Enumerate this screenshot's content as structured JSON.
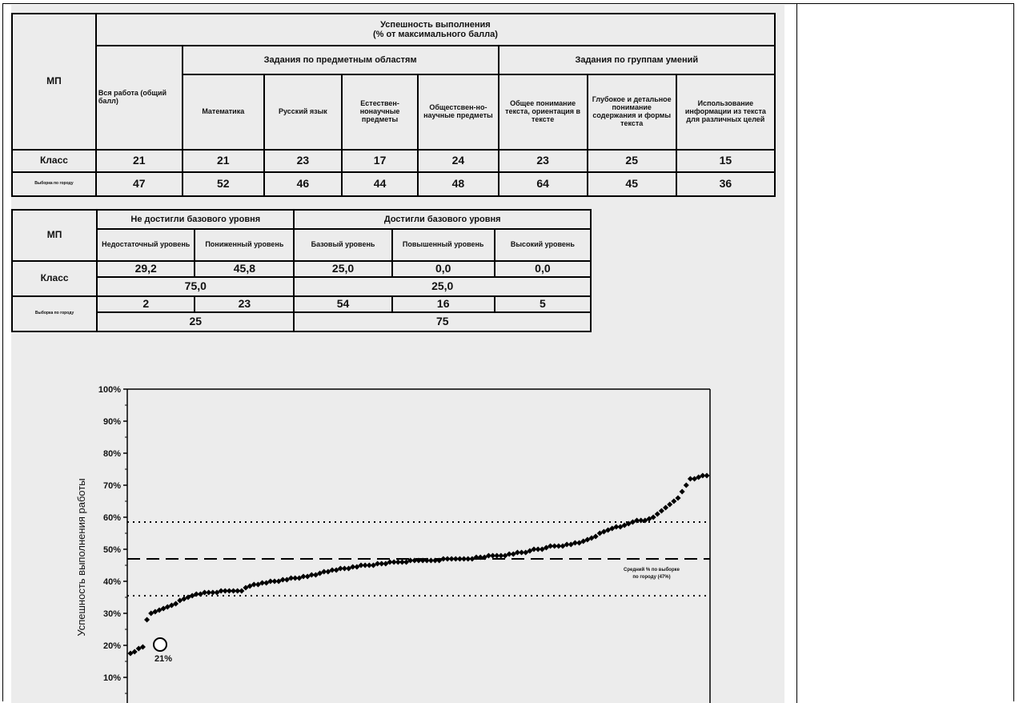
{
  "table1": {
    "mp_label": "МП",
    "title_line1": "Успешность выполнения",
    "title_line2": "(% от максимального балла)",
    "whole_work": "Вся работа (общий балл)",
    "group_subject": "Задания по предметным областям",
    "group_skills": "Задания по группам умений",
    "col_math": "Математика",
    "col_russian": "Русский язык",
    "col_science": "Естествен-нонаучные предметы",
    "col_social": "Общестсвен-но-научные предметы",
    "col_general": "Общее понимание текста, ориентация в тексте",
    "col_deep": "Глубокое и детальное понимание содержания и формы текста",
    "col_use": "Использование информации из текста для различных целей",
    "row_class_label": "Класс",
    "row_sample_label": "Выборка по городу",
    "row_class": [
      "21",
      "21",
      "23",
      "17",
      "24",
      "23",
      "25",
      "15"
    ],
    "row_sample": [
      "47",
      "52",
      "46",
      "44",
      "48",
      "64",
      "45",
      "36"
    ]
  },
  "table2": {
    "mp_label": "МП",
    "not_reached": "Не достигли базового уровня",
    "reached": "Достигли базового уровня",
    "levels": [
      "Недостаточный уровень",
      "Пониженный уровень",
      "Базовый уровень",
      "Повышенный уровень",
      "Высокий уровень"
    ],
    "class_label": "Класс",
    "class_values": [
      "29,2",
      "45,8",
      "25,0",
      "0,0",
      "0,0"
    ],
    "class_not_reached_total": "75,0",
    "class_reached_total": "25,0",
    "sample_label": "Выборка по городу",
    "sample_values": [
      "2",
      "23",
      "54",
      "16",
      "5"
    ],
    "sample_not_reached_total": "25",
    "sample_reached_total": "75"
  },
  "chart_data": {
    "type": "scatter",
    "ylabel": "Успешность выполнения работы",
    "ylim": [
      0,
      100
    ],
    "yticks": [
      "10%",
      "20%",
      "30%",
      "40%",
      "50%",
      "60%",
      "70%",
      "80%",
      "90%",
      "100%"
    ],
    "series": [
      {
        "values": [
          17.5,
          18,
          19,
          19.5,
          28,
          30,
          30.5,
          31,
          31.5,
          32,
          32.5,
          33,
          34,
          34.5,
          35,
          35.5,
          36,
          36,
          36.5,
          36.5,
          36.5,
          36.5,
          37,
          37,
          37,
          37,
          37,
          37,
          38,
          38.5,
          39,
          39,
          39.5,
          39.5,
          40,
          40,
          40,
          40.5,
          40.5,
          41,
          41,
          41,
          41.5,
          41.5,
          42,
          42,
          42.5,
          43,
          43,
          43.5,
          43.5,
          44,
          44,
          44,
          44.5,
          44.5,
          45,
          45,
          45,
          45,
          45.5,
          45.5,
          45.5,
          46,
          46,
          46,
          46,
          46,
          46.5,
          46.5,
          46.5,
          46.5,
          46.5,
          46.5,
          46.5,
          46.5,
          47,
          47,
          47,
          47,
          47,
          47,
          47,
          47,
          47.5,
          47.5,
          47.5,
          48,
          48,
          48,
          48,
          48,
          48.5,
          48.5,
          49,
          49,
          49,
          49.5,
          50,
          50,
          50,
          50.5,
          51,
          51,
          51,
          51,
          51.5,
          51.5,
          52,
          52,
          52.5,
          53,
          53.5,
          54,
          55,
          55.5,
          56,
          56.5,
          57,
          57,
          57.5,
          58,
          58.5,
          59,
          59,
          59,
          59.5,
          60,
          61,
          62,
          63,
          64,
          65,
          66,
          68,
          70,
          72,
          72,
          72.5,
          73,
          73
        ]
      }
    ],
    "reference_lines": [
      {
        "style": "dashed",
        "value": 47
      },
      {
        "style": "dotted",
        "value": 58.5
      },
      {
        "style": "dotted",
        "value": 35.5
      }
    ],
    "annotation_circle_value": 21,
    "annotation_circle_label": "21%",
    "reference_label": "Средний % по выборке по городу (47%)"
  }
}
